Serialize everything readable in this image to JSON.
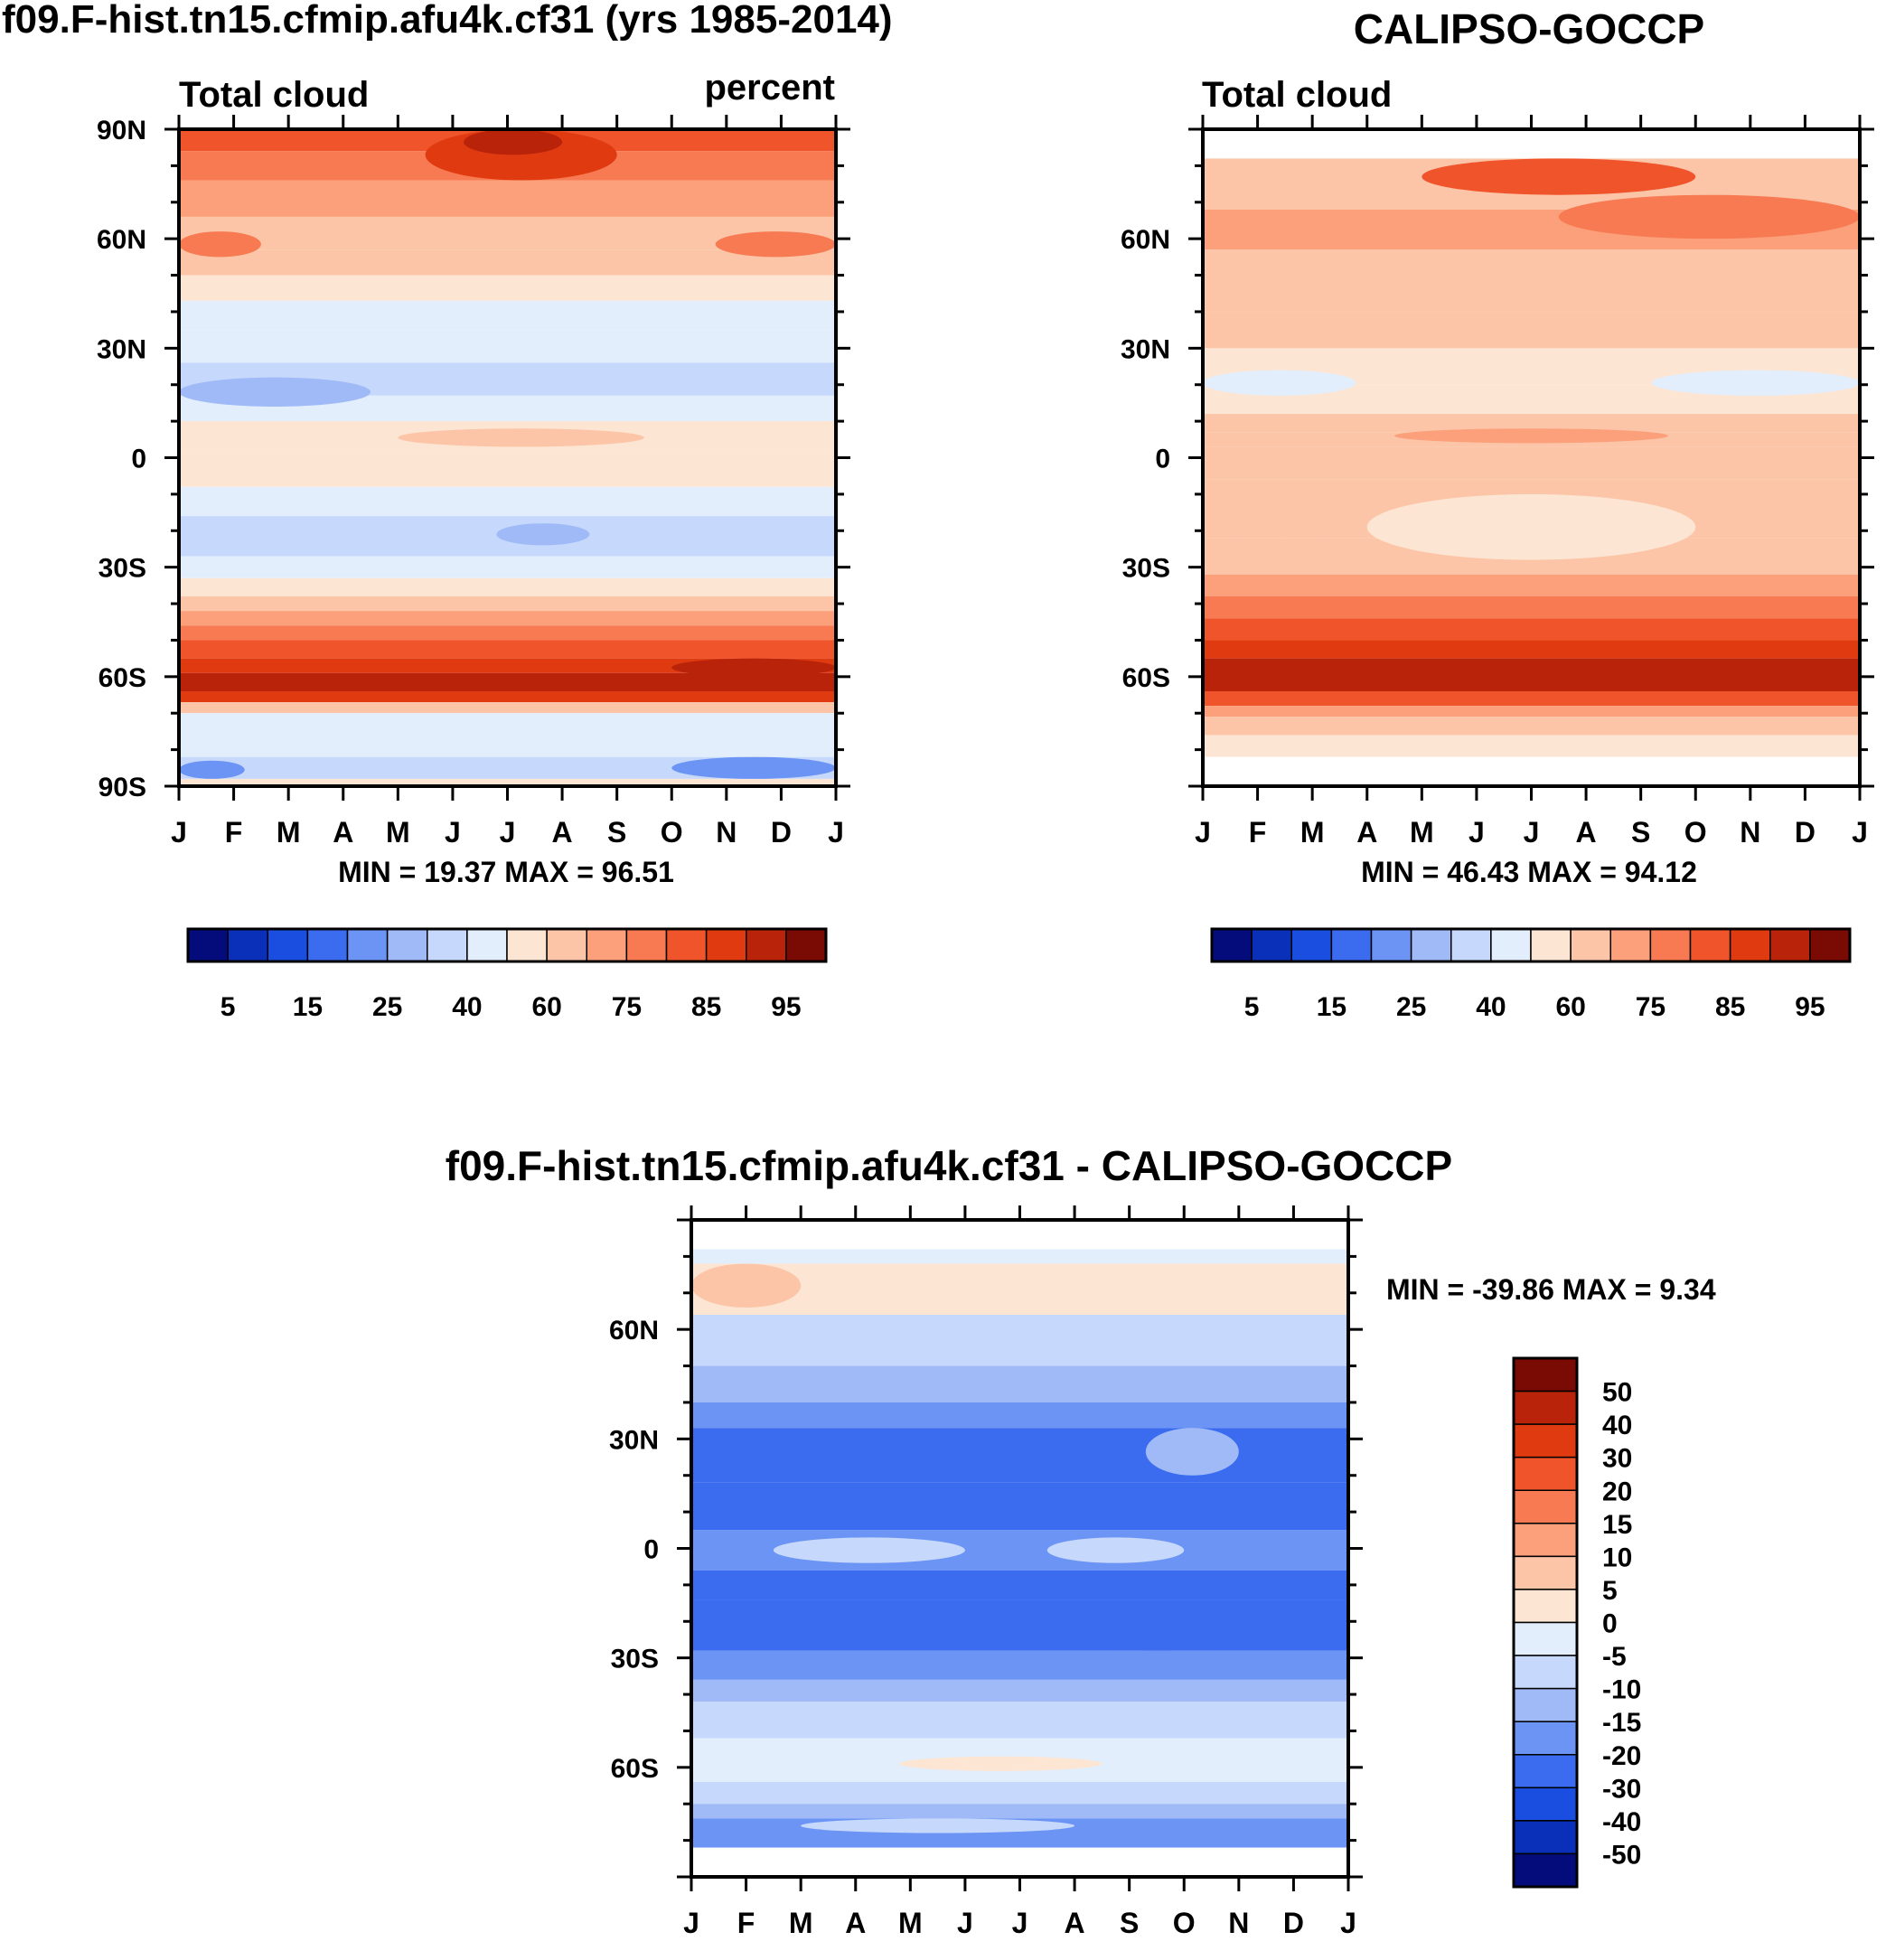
{
  "chart_data": [
    {
      "id": "model",
      "type": "heatmap",
      "title": "f09.F-hist.tn15.cfmip.afu4k.cf31 (yrs 1985-2014)",
      "left_label": "Total cloud",
      "right_label": "percent",
      "stats": "MIN =  19.37 MAX =  96.51",
      "x_ticks": [
        "J",
        "F",
        "M",
        "A",
        "M",
        "J",
        "J",
        "A",
        "S",
        "O",
        "N",
        "D",
        "J"
      ],
      "y_range": [
        -90,
        90
      ],
      "y_ticks": [
        {
          "v": 90,
          "label": "90N"
        },
        {
          "v": 60,
          "label": "60N"
        },
        {
          "v": 30,
          "label": "30N"
        },
        {
          "v": 0,
          "label": "0"
        },
        {
          "v": -30,
          "label": "30S"
        },
        {
          "v": -60,
          "label": "60S"
        },
        {
          "v": -90,
          "label": "90S"
        }
      ],
      "bands": [
        {
          "lat": [
            84,
            90
          ],
          "v": 82
        },
        {
          "lat": [
            76,
            84
          ],
          "v": 77
        },
        {
          "lat": [
            66,
            76
          ],
          "v": 70
        },
        {
          "lat": [
            57,
            66
          ],
          "v": 66
        },
        {
          "lat": [
            50,
            57
          ],
          "v": 62
        },
        {
          "lat": [
            43,
            50
          ],
          "v": 57
        },
        {
          "lat": [
            35,
            43
          ],
          "v": 48
        },
        {
          "lat": [
            26,
            35
          ],
          "v": 40
        },
        {
          "lat": [
            17,
            26
          ],
          "v": 36
        },
        {
          "lat": [
            10,
            17
          ],
          "v": 42
        },
        {
          "lat": [
            2,
            10
          ],
          "v": 57
        },
        {
          "lat": [
            -8,
            2
          ],
          "v": 55
        },
        {
          "lat": [
            -16,
            -8
          ],
          "v": 47
        },
        {
          "lat": [
            -27,
            -16
          ],
          "v": 38
        },
        {
          "lat": [
            -33,
            -27
          ],
          "v": 47
        },
        {
          "lat": [
            -38,
            -33
          ],
          "v": 57
        },
        {
          "lat": [
            -42,
            -38
          ],
          "v": 64
        },
        {
          "lat": [
            -46,
            -42
          ],
          "v": 70
        },
        {
          "lat": [
            -50,
            -46
          ],
          "v": 76
        },
        {
          "lat": [
            -55,
            -50
          ],
          "v": 83
        },
        {
          "lat": [
            -59,
            -55
          ],
          "v": 88
        },
        {
          "lat": [
            -64,
            -59
          ],
          "v": 92
        },
        {
          "lat": [
            -67,
            -64
          ],
          "v": 85
        },
        {
          "lat": [
            -70,
            -67
          ],
          "v": 68
        },
        {
          "lat": [
            -76,
            -70
          ],
          "v": 48
        },
        {
          "lat": [
            -82,
            -76
          ],
          "v": 42
        },
        {
          "lat": [
            -88,
            -82
          ],
          "v": 35
        },
        {
          "lat": [
            -90,
            -88
          ],
          "v": 52
        }
      ],
      "blobs": [
        {
          "lat": [
            76,
            90
          ],
          "m": [
            4.5,
            8.0
          ],
          "v": 88
        },
        {
          "lat": [
            83,
            90
          ],
          "m": [
            5.2,
            7.0
          ],
          "v": 93
        },
        {
          "lat": [
            55,
            62
          ],
          "m": [
            0,
            1.5
          ],
          "v": 75
        },
        {
          "lat": [
            55,
            62
          ],
          "m": [
            9.8,
            12
          ],
          "v": 78
        },
        {
          "lat": [
            14,
            22
          ],
          "m": [
            0,
            3.5
          ],
          "v": 29
        },
        {
          "lat": [
            -24,
            -18
          ],
          "m": [
            5.8,
            7.5
          ],
          "v": 29
        },
        {
          "lat": [
            3,
            8
          ],
          "m": [
            4,
            8.5
          ],
          "v": 62
        },
        {
          "lat": [
            -60,
            -55
          ],
          "m": [
            9,
            12
          ],
          "v": 94
        },
        {
          "lat": [
            -88,
            -82
          ],
          "m": [
            9,
            12
          ],
          "v": 24
        },
        {
          "lat": [
            -88,
            -83
          ],
          "m": [
            0,
            1.2
          ],
          "v": 22
        }
      ]
    },
    {
      "id": "obs",
      "type": "heatmap",
      "title": "CALIPSO-GOCCP",
      "left_label": "Total cloud",
      "stats": "MIN =  46.43 MAX =  94.12",
      "x_ticks": [
        "J",
        "F",
        "M",
        "A",
        "M",
        "J",
        "J",
        "A",
        "S",
        "O",
        "N",
        "D",
        "J"
      ],
      "y_range": [
        -90,
        90
      ],
      "y_ticks": [
        {
          "v": 60,
          "label": "60N"
        },
        {
          "v": 30,
          "label": "30N"
        },
        {
          "v": 0,
          "label": "0"
        },
        {
          "v": -30,
          "label": "30S"
        },
        {
          "v": -60,
          "label": "60S"
        }
      ],
      "data_lat_range": [
        -82,
        82
      ],
      "bands": [
        {
          "lat": [
            68,
            82
          ],
          "v": 66
        },
        {
          "lat": [
            57,
            68
          ],
          "v": 70
        },
        {
          "lat": [
            40,
            57
          ],
          "v": 66
        },
        {
          "lat": [
            30,
            40
          ],
          "v": 62
        },
        {
          "lat": [
            20,
            30
          ],
          "v": 57
        },
        {
          "lat": [
            12,
            20
          ],
          "v": 52
        },
        {
          "lat": [
            7,
            12
          ],
          "v": 62
        },
        {
          "lat": [
            3,
            7
          ],
          "v": 67
        },
        {
          "lat": [
            -6,
            3
          ],
          "v": 62
        },
        {
          "lat": [
            -22,
            -6
          ],
          "v": 60
        },
        {
          "lat": [
            -32,
            -22
          ],
          "v": 63
        },
        {
          "lat": [
            -38,
            -32
          ],
          "v": 70
        },
        {
          "lat": [
            -44,
            -38
          ],
          "v": 77
        },
        {
          "lat": [
            -50,
            -44
          ],
          "v": 83
        },
        {
          "lat": [
            -55,
            -50
          ],
          "v": 88
        },
        {
          "lat": [
            -64,
            -55
          ],
          "v": 92
        },
        {
          "lat": [
            -68,
            -64
          ],
          "v": 82
        },
        {
          "lat": [
            -71,
            -68
          ],
          "v": 74
        },
        {
          "lat": [
            -76,
            -71
          ],
          "v": 66
        },
        {
          "lat": [
            -82,
            -76
          ],
          "v": 57
        }
      ],
      "blobs": [
        {
          "lat": [
            72,
            82
          ],
          "m": [
            4,
            9
          ],
          "v": 82
        },
        {
          "lat": [
            60,
            72
          ],
          "m": [
            6.5,
            12
          ],
          "v": 76
        },
        {
          "lat": [
            17,
            24
          ],
          "m": [
            8.2,
            12
          ],
          "v": 48
        },
        {
          "lat": [
            17,
            24
          ],
          "m": [
            0,
            2.8
          ],
          "v": 48
        },
        {
          "lat": [
            4,
            8
          ],
          "m": [
            3.5,
            8.5
          ],
          "v": 73
        },
        {
          "lat": [
            -28,
            -10
          ],
          "m": [
            3,
            9
          ],
          "v": 57
        },
        {
          "lat": [
            -30,
            -22
          ],
          "m": [
            0,
            3
          ],
          "v": 62
        }
      ]
    },
    {
      "id": "diff",
      "type": "heatmap",
      "title": "f09.F-hist.tn15.cfmip.afu4k.cf31 - CALIPSO-GOCCP",
      "stats": "MIN = -39.86 MAX =   9.34",
      "x_ticks": [
        "J",
        "F",
        "M",
        "A",
        "M",
        "J",
        "J",
        "A",
        "S",
        "O",
        "N",
        "D",
        "J"
      ],
      "y_range": [
        -90,
        90
      ],
      "y_ticks": [
        {
          "v": 60,
          "label": "60N"
        },
        {
          "v": 30,
          "label": "30N"
        },
        {
          "v": 0,
          "label": "0"
        },
        {
          "v": -30,
          "label": "30S"
        },
        {
          "v": -60,
          "label": "60S"
        }
      ],
      "data_lat_range": [
        -82,
        82
      ],
      "bands": [
        {
          "lat": [
            78,
            82
          ],
          "v": -3
        },
        {
          "lat": [
            64,
            78
          ],
          "v": 1
        },
        {
          "lat": [
            50,
            64
          ],
          "v": -6
        },
        {
          "lat": [
            40,
            50
          ],
          "v": -12
        },
        {
          "lat": [
            33,
            40
          ],
          "v": -18
        },
        {
          "lat": [
            18,
            33
          ],
          "v": -22
        },
        {
          "lat": [
            5,
            18
          ],
          "v": -26
        },
        {
          "lat": [
            -6,
            5
          ],
          "v": -18
        },
        {
          "lat": [
            -14,
            -6
          ],
          "v": -22
        },
        {
          "lat": [
            -28,
            -14
          ],
          "v": -25
        },
        {
          "lat": [
            -36,
            -28
          ],
          "v": -18
        },
        {
          "lat": [
            -42,
            -36
          ],
          "v": -13
        },
        {
          "lat": [
            -52,
            -42
          ],
          "v": -7
        },
        {
          "lat": [
            -64,
            -52
          ],
          "v": -3
        },
        {
          "lat": [
            -70,
            -64
          ],
          "v": -7
        },
        {
          "lat": [
            -74,
            -70
          ],
          "v": -13
        },
        {
          "lat": [
            -82,
            -74
          ],
          "v": -18
        }
      ],
      "blobs": [
        {
          "lat": [
            66,
            78
          ],
          "m": [
            0,
            2
          ],
          "v": 6
        },
        {
          "lat": [
            66,
            78
          ],
          "m": [
            8.5,
            12
          ],
          "v": 2
        },
        {
          "lat": [
            20,
            33
          ],
          "m": [
            8.3,
            10
          ],
          "v": -13
        },
        {
          "lat": [
            -4,
            3
          ],
          "m": [
            1.5,
            5
          ],
          "v": -10
        },
        {
          "lat": [
            -4,
            3
          ],
          "m": [
            6.5,
            9
          ],
          "v": -8
        },
        {
          "lat": [
            -28,
            -18
          ],
          "m": [
            5,
            12
          ],
          "v": -27
        },
        {
          "lat": [
            -61,
            -57
          ],
          "m": [
            3.8,
            7.5
          ],
          "v": 3
        },
        {
          "lat": [
            -78,
            -74
          ],
          "m": [
            2,
            7
          ],
          "v": -10
        }
      ]
    }
  ],
  "colorbars": {
    "model_colors": [
      "#040c7c",
      "#0a2fb8",
      "#1a4ee0",
      "#3b6cf0",
      "#6b94f5",
      "#9fbaf7",
      "#c6d8fb",
      "#e2eefc",
      "#fde5d3",
      "#fcc5a8",
      "#fba07a",
      "#f77a52",
      "#f0542b",
      "#e03a11",
      "#b8230a",
      "#7a0a04"
    ],
    "model_boundaries": [
      5,
      10,
      15,
      20,
      25,
      30,
      40,
      50,
      60,
      70,
      75,
      80,
      85,
      90,
      95
    ],
    "model_labels": [
      "5",
      "15",
      "25",
      "40",
      "60",
      "75",
      "85",
      "95"
    ],
    "diff_colors": [
      "#040c7c",
      "#0a2fb8",
      "#1a4ee0",
      "#3b6cf0",
      "#6b94f5",
      "#9fbaf7",
      "#c6d8fb",
      "#e2eefc",
      "#fde5d3",
      "#fcc5a8",
      "#fba07a",
      "#f77a52",
      "#f0542b",
      "#e03a11",
      "#b8230a",
      "#7a0a04"
    ],
    "diff_boundaries": [
      -50,
      -40,
      -30,
      -20,
      -15,
      -10,
      -5,
      0,
      5,
      10,
      15,
      20,
      30,
      40,
      50
    ],
    "diff_labels": [
      "50",
      "40",
      "30",
      "20",
      "15",
      "10",
      "5",
      "0",
      "-5",
      "-10",
      "-15",
      "-20",
      "-30",
      "-40",
      "-50"
    ]
  }
}
